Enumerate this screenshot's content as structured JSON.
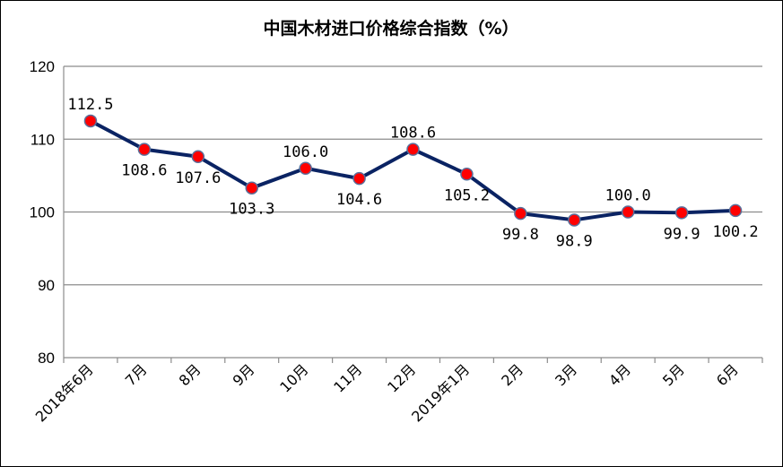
{
  "chart_data": {
    "type": "line",
    "title": "中国木材进口价格综合指数（%）",
    "xlabel": "",
    "ylabel": "",
    "categories": [
      "2018年6月",
      "7月",
      "8月",
      "9月",
      "10月",
      "11月",
      "12月",
      "2019年1月",
      "2月",
      "3月",
      "4月",
      "5月",
      "6月"
    ],
    "series": [
      {
        "values": [
          112.5,
          108.6,
          107.6,
          103.3,
          106.0,
          104.6,
          108.6,
          105.2,
          99.8,
          98.9,
          100.0,
          99.9,
          100.2
        ],
        "labels": [
          "112.5",
          "108.6",
          "107.6",
          "103.3",
          "106.0",
          "104.6",
          "108.6",
          "105.2",
          "99.8",
          "98.9",
          "100.0",
          "99.9",
          "100.2"
        ]
      }
    ],
    "ylim": [
      80,
      120
    ],
    "yticks": [
      80,
      90,
      100,
      110,
      120
    ],
    "ytick_labels": [
      "80",
      "90",
      "100",
      "110",
      "120"
    ],
    "grid": true,
    "legend": "none",
    "colors": {
      "line": "#0a2363",
      "marker_fill": "#ff0000",
      "marker_edge": "#5a6f9a",
      "grid": "#8c8c8c",
      "axis": "#8c8c8c"
    }
  }
}
